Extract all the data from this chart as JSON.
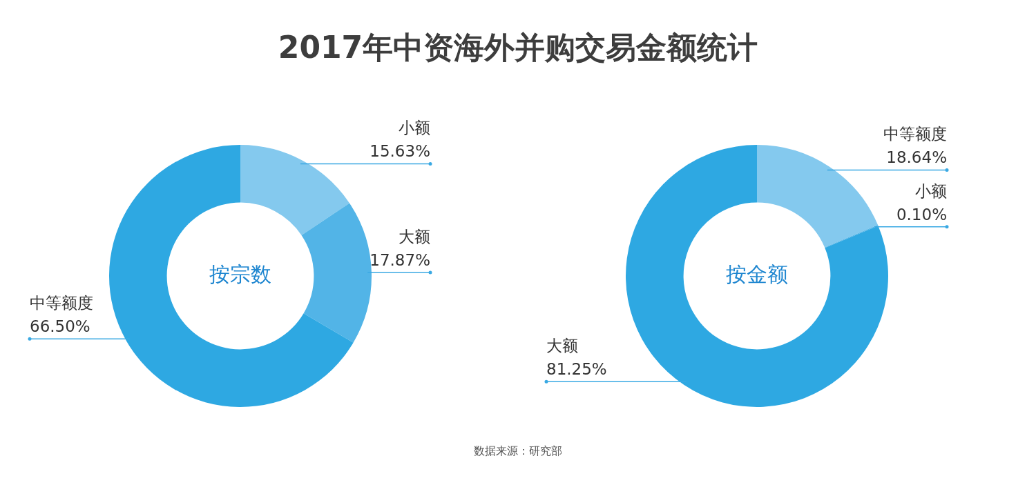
{
  "chart_data": [
    {
      "type": "donut",
      "title": "2017年中资海外并购交易金额统计",
      "categories": [
        "小额",
        "大额",
        "中等额度"
      ],
      "values": [
        15.63,
        17.87,
        66.5
      ],
      "value_labels": [
        "15.63%",
        "17.87%",
        "66.50%"
      ],
      "colors": [
        "#84c9ee",
        "#52b4e7",
        "#2ea8e2"
      ],
      "legend": false,
      "annotations": [
        "按宗数",
        "数据来源：研究部"
      ]
    },
    {
      "type": "donut",
      "categories": [
        "中等额度",
        "小额",
        "大额"
      ],
      "values": [
        18.64,
        0.1,
        81.25
      ],
      "value_labels": [
        "18.64%",
        "0.10%",
        "81.25%"
      ],
      "colors": [
        "#84c9ee",
        "#52b4e7",
        "#2ea8e2"
      ],
      "legend": false,
      "annotations": [
        "按金额"
      ]
    }
  ]
}
